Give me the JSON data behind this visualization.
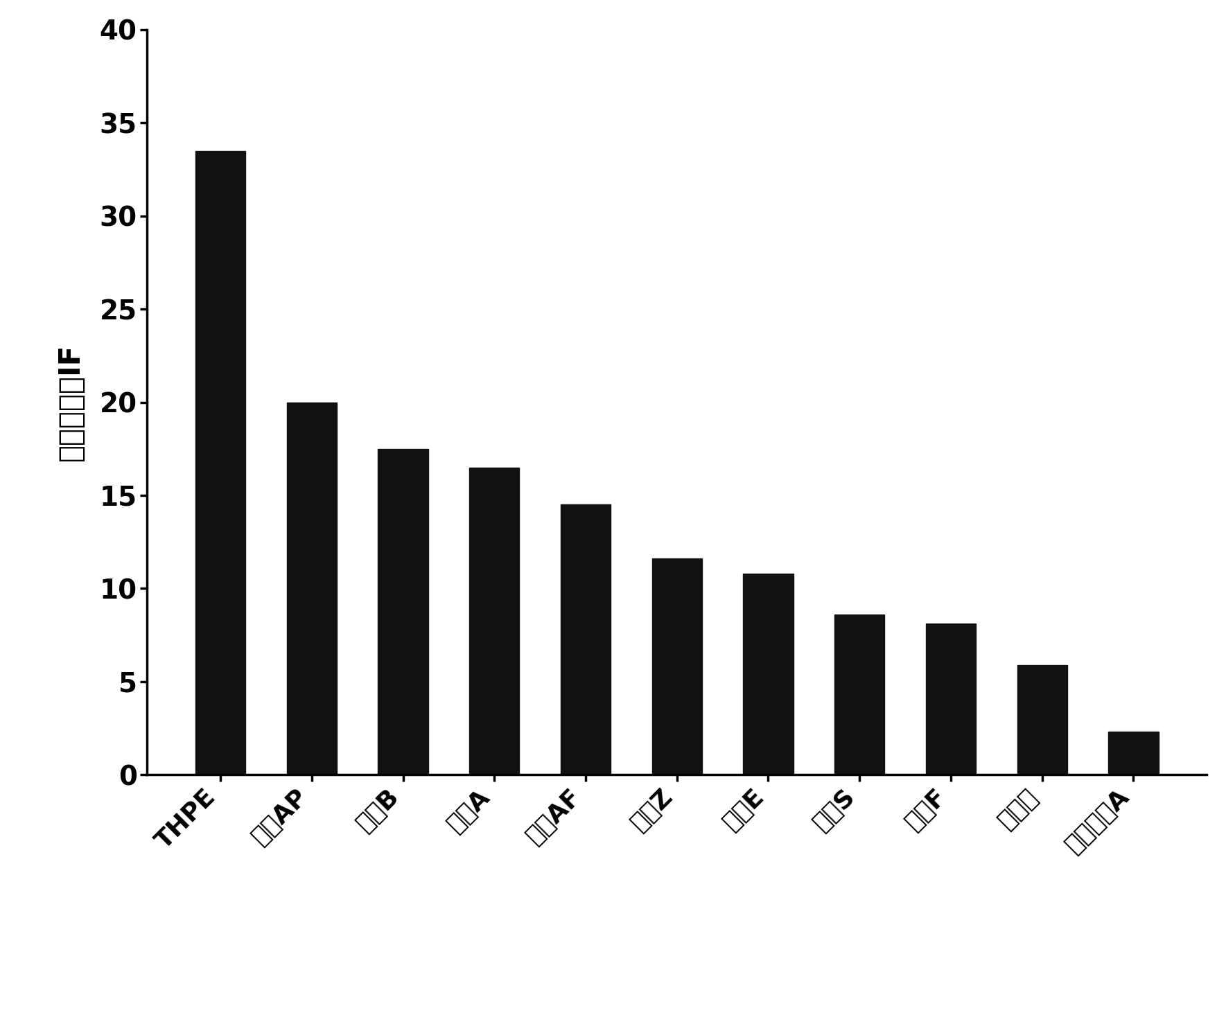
{
  "categories": [
    "THPE",
    "双酝AP",
    "双酝B",
    "双酝A",
    "双酝AF",
    "双酝Z",
    "双酝E",
    "双酝S",
    "双酝F",
    "双酝酸",
    "四游双酝A"
  ],
  "values": [
    33.5,
    20.0,
    17.5,
    16.5,
    14.5,
    11.6,
    10.8,
    8.6,
    8.1,
    5.9,
    2.3
  ],
  "bar_color": "#111111",
  "ylabel": "印迹因子，IF",
  "ylim": [
    0,
    40
  ],
  "yticks": [
    0,
    5,
    10,
    15,
    20,
    25,
    30,
    35,
    40
  ],
  "bar_width": 0.55,
  "background_color": "#ffffff",
  "tick_fontsize": 28,
  "ylabel_fontsize": 30,
  "xlabel_fontsize": 26,
  "xlabel_rotation": 45
}
